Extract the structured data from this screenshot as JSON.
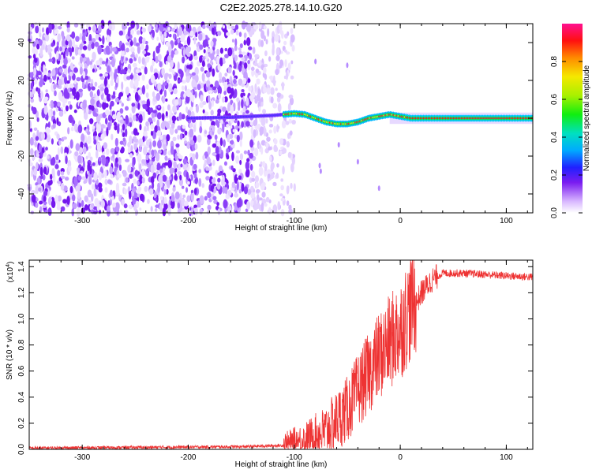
{
  "title": "C2E2.2025.278.14.10.G20",
  "chart_data": [
    {
      "type": "heatmap",
      "name": "spectrogram",
      "xlabel": "Height of straight line (km)",
      "ylabel": "Frequency (Hz)",
      "xlim": [
        -350,
        125
      ],
      "ylim": [
        -50,
        50
      ],
      "xticks": [
        -300,
        -200,
        -100,
        0,
        100
      ],
      "yticks": [
        -40,
        -20,
        0,
        20,
        40
      ],
      "description_of_signal": "Diffuse noise at all frequencies for heights below about -110 km; a coherent signal near 0 Hz appears from about -200 km, with oscillation around -80 to 0 km and a clean line at ~0 Hz from about 5 km to 125 km.",
      "ridge_frequency": {
        "x": [
          -200,
          -160,
          -120,
          -100,
          -90,
          -80,
          -70,
          -60,
          -50,
          -40,
          -30,
          -20,
          -10,
          0,
          10,
          50,
          100,
          125
        ],
        "y": [
          0,
          0.5,
          1.5,
          2.5,
          2,
          0,
          -2,
          -3,
          -3,
          -2,
          0,
          1,
          2,
          1,
          0,
          0,
          0,
          0
        ]
      },
      "colorbar": {
        "label": "Normalized spectral amplitude",
        "range": [
          0,
          1
        ],
        "ticks": [
          "0.0",
          "0.2",
          "0.4",
          "0.6",
          "0.8"
        ]
      }
    },
    {
      "type": "line",
      "name": "snr",
      "xlabel": "Height of straight line (km)",
      "ylabel": "SNR (10 * v/v)",
      "y_scale_label": "(x10",
      "y_scale_exponent": "4",
      "xlim": [
        -350,
        125
      ],
      "ylim": [
        0,
        1.45
      ],
      "xticks": [
        -300,
        -200,
        -100,
        0,
        100
      ],
      "yticks": [
        "0.0",
        "0.2",
        "0.4",
        "0.6",
        "0.8",
        "1.0",
        "1.2",
        "1.4"
      ],
      "color": "#ee3333",
      "trend": {
        "x": [
          -350,
          -150,
          -110,
          -90,
          -70,
          -60,
          -50,
          -40,
          -30,
          -20,
          -10,
          0,
          10,
          20,
          30,
          40,
          60,
          100,
          125
        ],
        "y": [
          0.01,
          0.02,
          0.03,
          0.05,
          0.12,
          0.2,
          0.28,
          0.42,
          0.55,
          0.68,
          0.78,
          0.88,
          1.05,
          1.2,
          1.3,
          1.35,
          1.35,
          1.33,
          1.32
        ]
      }
    }
  ]
}
